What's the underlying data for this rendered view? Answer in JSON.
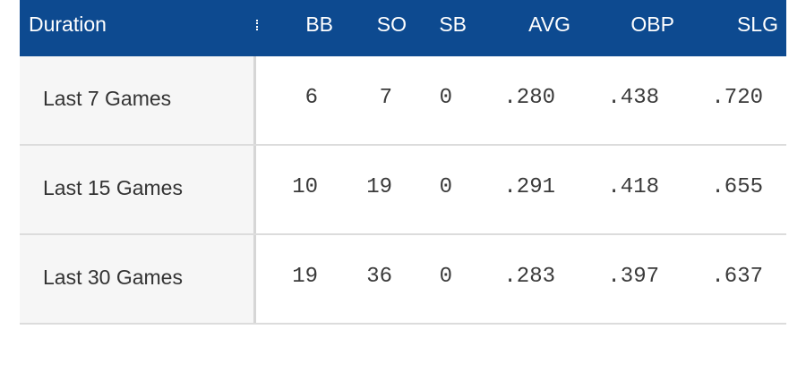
{
  "table": {
    "columns": [
      "Duration",
      "BB",
      "SO",
      "SB",
      "AVG",
      "OBP",
      "SLG"
    ],
    "rows": [
      [
        "Last 7 Games",
        "6",
        "7",
        "0",
        ".280",
        ".438",
        ".720"
      ],
      [
        "Last 15 Games",
        "10",
        "19",
        "0",
        ".291",
        ".418",
        ".655"
      ],
      [
        "Last 30 Games",
        "19",
        "36",
        "0",
        ".283",
        ".397",
        ".637"
      ]
    ]
  }
}
